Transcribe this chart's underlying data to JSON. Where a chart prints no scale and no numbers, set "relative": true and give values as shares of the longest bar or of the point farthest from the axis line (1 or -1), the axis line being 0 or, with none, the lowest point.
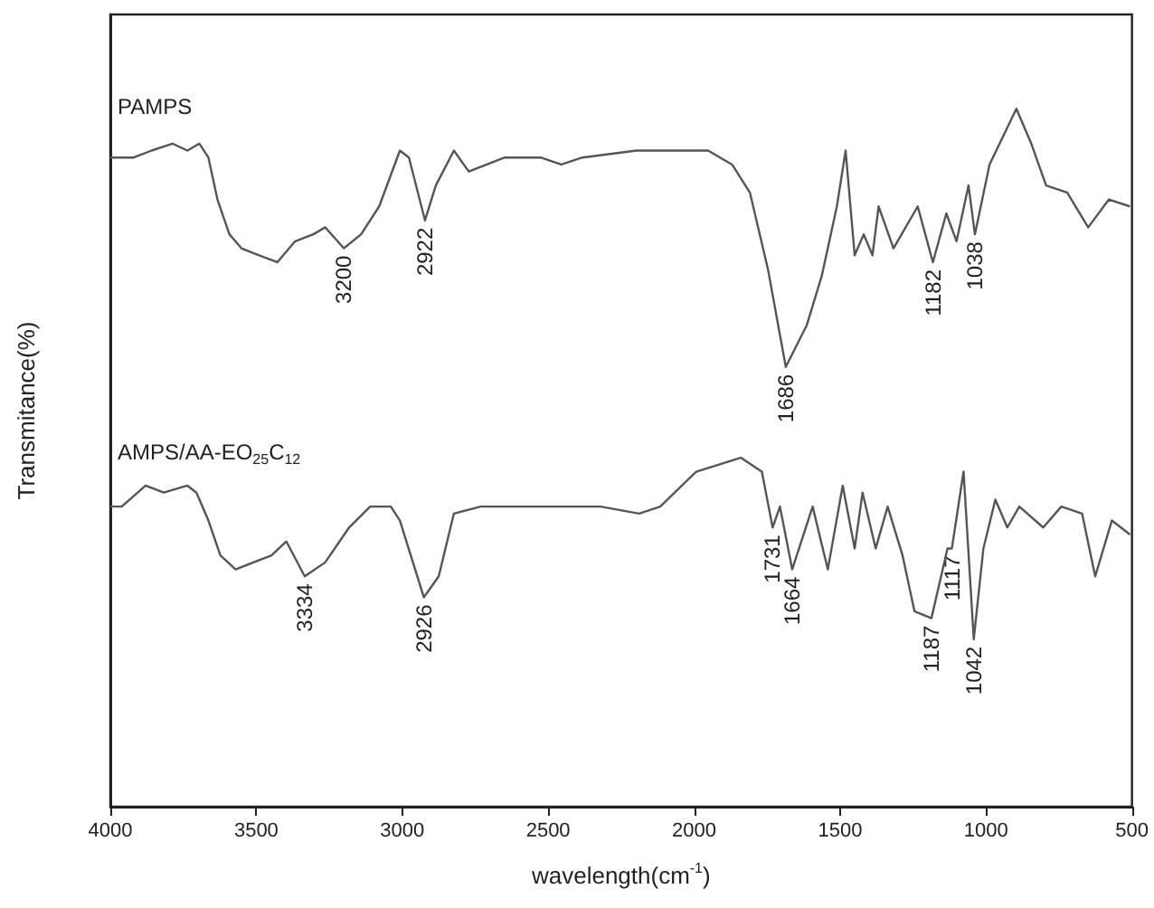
{
  "chart_data": {
    "type": "line",
    "relative": true,
    "xlabel": "wavelength(cm$^{-1}$)",
    "ylabel": "Transmitance(%)",
    "xlim": [
      4000,
      500
    ],
    "xticks": [
      4000,
      3500,
      3000,
      2500,
      2000,
      1500,
      1000,
      500
    ],
    "legend": false,
    "grid": false,
    "marker": "none",
    "series": [
      {
        "name": "PAMPS",
        "color": "#555555",
        "x": [
          4000,
          3920,
          3859,
          3787,
          3736,
          3695,
          3664,
          3633,
          3592,
          3551,
          3490,
          3428,
          3367,
          3305,
          3264,
          3200,
          3141,
          3079,
          3008,
          2977,
          2922,
          2885,
          2823,
          2772,
          2649,
          2526,
          2455,
          2383,
          2198,
          2116,
          1952,
          1870,
          1809,
          1747,
          1686,
          1614,
          1563,
          1511,
          1481,
          1450,
          1419,
          1389,
          1368,
          1317,
          1234,
          1182,
          1136,
          1101,
          1060,
          1038,
          988,
          896,
          845,
          794,
          722,
          650,
          579,
          507
        ],
        "values": [
          0.93,
          0.93,
          0.94,
          0.95,
          0.94,
          0.95,
          0.93,
          0.87,
          0.82,
          0.8,
          0.79,
          0.78,
          0.81,
          0.82,
          0.83,
          0.8,
          0.82,
          0.86,
          0.94,
          0.93,
          0.84,
          0.89,
          0.94,
          0.91,
          0.93,
          0.93,
          0.92,
          0.93,
          0.94,
          0.94,
          0.94,
          0.92,
          0.88,
          0.77,
          0.63,
          0.69,
          0.76,
          0.86,
          0.94,
          0.79,
          0.82,
          0.79,
          0.86,
          0.8,
          0.86,
          0.78,
          0.85,
          0.81,
          0.89,
          0.82,
          0.92,
          1.0,
          0.95,
          0.89,
          0.88,
          0.83,
          0.87,
          0.86
        ]
      },
      {
        "name": "AMPS/AA-EO$_{25}$C$_{12}$",
        "color": "#555555",
        "x": [
          4000,
          3961,
          3879,
          3817,
          3736,
          3705,
          3664,
          3623,
          3571,
          3510,
          3448,
          3397,
          3334,
          3264,
          3182,
          3110,
          3039,
          3008,
          2926,
          2875,
          2823,
          2731,
          2608,
          2485,
          2321,
          2188,
          2116,
          1993,
          1840,
          1768,
          1731,
          1706,
          1664,
          1594,
          1542,
          1491,
          1450,
          1423,
          1378,
          1337,
          1286,
          1245,
          1187,
          1132,
          1117,
          1077,
          1042,
          1009,
          968,
          927,
          886,
          804,
          742,
          671,
          626,
          569,
          507
        ],
        "values": [
          0.43,
          0.43,
          0.46,
          0.45,
          0.46,
          0.45,
          0.41,
          0.36,
          0.34,
          0.35,
          0.36,
          0.38,
          0.33,
          0.35,
          0.4,
          0.43,
          0.43,
          0.41,
          0.3,
          0.33,
          0.42,
          0.43,
          0.43,
          0.43,
          0.43,
          0.42,
          0.43,
          0.48,
          0.5,
          0.48,
          0.4,
          0.43,
          0.34,
          0.43,
          0.34,
          0.46,
          0.37,
          0.45,
          0.37,
          0.43,
          0.36,
          0.28,
          0.27,
          0.37,
          0.37,
          0.48,
          0.24,
          0.37,
          0.44,
          0.4,
          0.43,
          0.4,
          0.43,
          0.42,
          0.33,
          0.41,
          0.39
        ]
      }
    ],
    "annotations": [
      {
        "text": "3200",
        "x": 3200,
        "y": 0.8
      },
      {
        "text": "2922",
        "x": 2922,
        "y": 0.84
      },
      {
        "text": "1686",
        "x": 1686,
        "y": 0.63
      },
      {
        "text": "1182",
        "x": 1182,
        "y": 0.78
      },
      {
        "text": "1038",
        "x": 1038,
        "y": 0.82
      },
      {
        "text": "3334",
        "x": 3334,
        "y": 0.33
      },
      {
        "text": "2926",
        "x": 2926,
        "y": 0.3
      },
      {
        "text": "1731",
        "x": 1731,
        "y": 0.4
      },
      {
        "text": "1664",
        "x": 1664,
        "y": 0.34
      },
      {
        "text": "1187",
        "x": 1187,
        "y": 0.27
      },
      {
        "text": "1117",
        "x": 1117,
        "y": 0.37
      },
      {
        "text": "1042",
        "x": 1042,
        "y": 0.24
      }
    ]
  }
}
